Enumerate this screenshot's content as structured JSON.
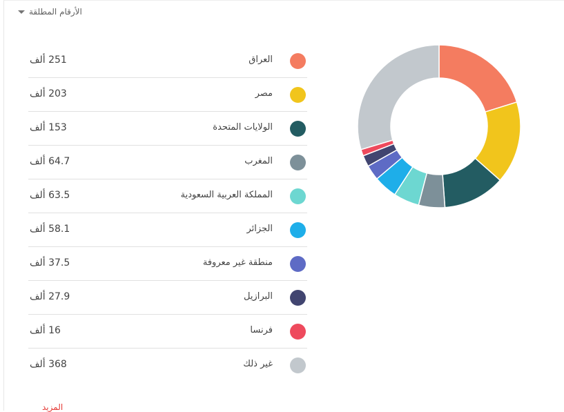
{
  "header": {
    "metric_label": "الأرقام المطلقة"
  },
  "legend": {
    "rows": [
      {
        "label": "العراق",
        "value": "251 ألف",
        "color": "#f47c60"
      },
      {
        "label": "مصر",
        "value": "203 ألف",
        "color": "#f1c51c"
      },
      {
        "label": "الولايات المتحدة",
        "value": "153 ألف",
        "color": "#235c62"
      },
      {
        "label": "المغرب",
        "value": "64.7 ألف",
        "color": "#7d9099"
      },
      {
        "label": "المملكة العربية السعودية",
        "value": "63.5 ألف",
        "color": "#6dd7d1"
      },
      {
        "label": "الجزائر",
        "value": "58.1 ألف",
        "color": "#1eaee9"
      },
      {
        "label": "منطقة غير معروفة",
        "value": "37.5 ألف",
        "color": "#5e6bc5"
      },
      {
        "label": "البرازيل",
        "value": "27.9 ألف",
        "color": "#414570"
      },
      {
        "label": "فرنسا",
        "value": "16 ألف",
        "color": "#ee4a5d"
      },
      {
        "label": "غير ذلك",
        "value": "368 ألف",
        "color": "#c2c8cd"
      }
    ]
  },
  "footer": {
    "more_label": "المزيد"
  },
  "chart_data": {
    "type": "pie",
    "style": "donut",
    "start": "top, clockwise",
    "categories": [
      "العراق",
      "مصر",
      "الولايات المتحدة",
      "المغرب",
      "المملكة العربية السعودية",
      "الجزائر",
      "منطقة غير معروفة",
      "البرازيل",
      "فرنسا",
      "غير ذلك"
    ],
    "values": [
      251000,
      203000,
      153000,
      64700,
      63500,
      58100,
      37500,
      27900,
      16000,
      368000
    ],
    "colors": [
      "#f47c60",
      "#f1c51c",
      "#235c62",
      "#7d9099",
      "#6dd7d1",
      "#1eaee9",
      "#5e6bc5",
      "#414570",
      "#ee4a5d",
      "#c2c8cd"
    ]
  }
}
